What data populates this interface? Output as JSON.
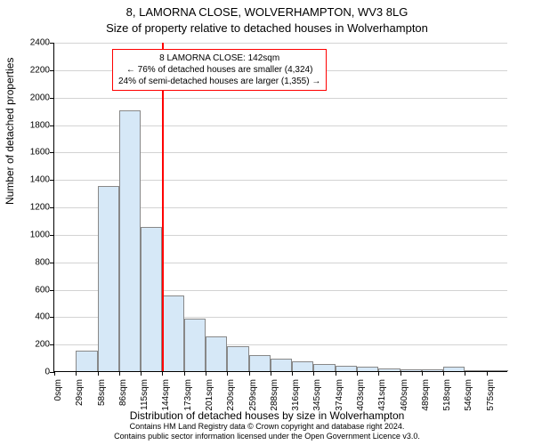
{
  "title_main": "8, LAMORNA CLOSE, WOLVERHAMPTON, WV3 8LG",
  "title_sub": "Size of property relative to detached houses in Wolverhampton",
  "ylabel": "Number of detached properties",
  "xlabel": "Distribution of detached houses by size in Wolverhampton",
  "credit1": "Contains HM Land Registry data © Crown copyright and database right 2024.",
  "credit2": "Contains public sector information licensed under the Open Government Licence v3.0.",
  "chart": {
    "type": "histogram",
    "ylim": [
      0,
      2400
    ],
    "ytick_step": 200,
    "yticks": [
      0,
      200,
      400,
      600,
      800,
      1000,
      1200,
      1400,
      1600,
      1800,
      2000,
      2200,
      2400
    ],
    "grid_color": "#d3d3d3",
    "xtick_labels": [
      "0sqm",
      "29sqm",
      "58sqm",
      "86sqm",
      "115sqm",
      "144sqm",
      "173sqm",
      "201sqm",
      "230sqm",
      "259sqm",
      "288sqm",
      "316sqm",
      "345sqm",
      "374sqm",
      "403sqm",
      "431sqm",
      "460sqm",
      "489sqm",
      "518sqm",
      "546sqm",
      "575sqm"
    ],
    "bars": [
      0,
      150,
      1350,
      1900,
      1050,
      550,
      380,
      250,
      180,
      120,
      90,
      70,
      50,
      40,
      30,
      20,
      15,
      10,
      30,
      5,
      3
    ],
    "bar_fill": "#d6e8f7",
    "bar_stroke": "#888888",
    "background_color": "#ffffff",
    "marker_sqm": 142,
    "marker_color": "#ff0000",
    "xmax_sqm": 600
  },
  "annotation": {
    "line1": "8 LAMORNA CLOSE: 142sqm",
    "line2": "← 76% of detached houses are smaller (4,324)",
    "line3": "24% of semi-detached houses are larger (1,355) →",
    "border_color": "#ff0000"
  }
}
